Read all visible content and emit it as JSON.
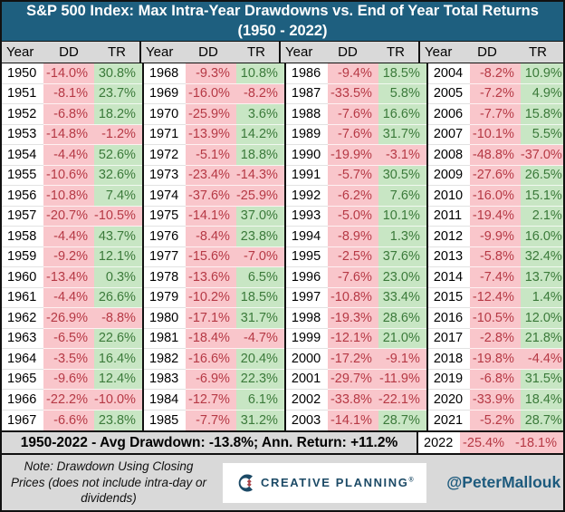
{
  "chart_data": {
    "type": "table",
    "title": "S&P 500 Index: Max Intra-Year Drawdowns vs. End of Year Total Returns (1950 - 2022)",
    "columns": [
      "Year",
      "DD",
      "TR"
    ],
    "column_descriptions": {
      "DD": "Max intra-year drawdown",
      "TR": "End of year total return"
    },
    "groups": [
      [
        [
          "1950",
          "-14.0%",
          "30.8%"
        ],
        [
          "1951",
          "-8.1%",
          "23.7%"
        ],
        [
          "1952",
          "-6.8%",
          "18.2%"
        ],
        [
          "1953",
          "-14.8%",
          "-1.2%"
        ],
        [
          "1954",
          "-4.4%",
          "52.6%"
        ],
        [
          "1955",
          "-10.6%",
          "32.6%"
        ],
        [
          "1956",
          "-10.8%",
          "7.4%"
        ],
        [
          "1957",
          "-20.7%",
          "-10.5%"
        ],
        [
          "1958",
          "-4.4%",
          "43.7%"
        ],
        [
          "1959",
          "-9.2%",
          "12.1%"
        ],
        [
          "1960",
          "-13.4%",
          "0.3%"
        ],
        [
          "1961",
          "-4.4%",
          "26.6%"
        ],
        [
          "1962",
          "-26.9%",
          "-8.8%"
        ],
        [
          "1963",
          "-6.5%",
          "22.6%"
        ],
        [
          "1964",
          "-3.5%",
          "16.4%"
        ],
        [
          "1965",
          "-9.6%",
          "12.4%"
        ],
        [
          "1966",
          "-22.2%",
          "-10.0%"
        ],
        [
          "1967",
          "-6.6%",
          "23.8%"
        ]
      ],
      [
        [
          "1968",
          "-9.3%",
          "10.8%"
        ],
        [
          "1969",
          "-16.0%",
          "-8.2%"
        ],
        [
          "1970",
          "-25.9%",
          "3.6%"
        ],
        [
          "1971",
          "-13.9%",
          "14.2%"
        ],
        [
          "1972",
          "-5.1%",
          "18.8%"
        ],
        [
          "1973",
          "-23.4%",
          "-14.3%"
        ],
        [
          "1974",
          "-37.6%",
          "-25.9%"
        ],
        [
          "1975",
          "-14.1%",
          "37.0%"
        ],
        [
          "1976",
          "-8.4%",
          "23.8%"
        ],
        [
          "1977",
          "-15.6%",
          "-7.0%"
        ],
        [
          "1978",
          "-13.6%",
          "6.5%"
        ],
        [
          "1979",
          "-10.2%",
          "18.5%"
        ],
        [
          "1980",
          "-17.1%",
          "31.7%"
        ],
        [
          "1981",
          "-18.4%",
          "-4.7%"
        ],
        [
          "1982",
          "-16.6%",
          "20.4%"
        ],
        [
          "1983",
          "-6.9%",
          "22.3%"
        ],
        [
          "1984",
          "-12.7%",
          "6.1%"
        ],
        [
          "1985",
          "-7.7%",
          "31.2%"
        ]
      ],
      [
        [
          "1986",
          "-9.4%",
          "18.5%"
        ],
        [
          "1987",
          "-33.5%",
          "5.8%"
        ],
        [
          "1988",
          "-7.6%",
          "16.6%"
        ],
        [
          "1989",
          "-7.6%",
          "31.7%"
        ],
        [
          "1990",
          "-19.9%",
          "-3.1%"
        ],
        [
          "1991",
          "-5.7%",
          "30.5%"
        ],
        [
          "1992",
          "-6.2%",
          "7.6%"
        ],
        [
          "1993",
          "-5.0%",
          "10.1%"
        ],
        [
          "1994",
          "-8.9%",
          "1.3%"
        ],
        [
          "1995",
          "-2.5%",
          "37.6%"
        ],
        [
          "1996",
          "-7.6%",
          "23.0%"
        ],
        [
          "1997",
          "-10.8%",
          "33.4%"
        ],
        [
          "1998",
          "-19.3%",
          "28.6%"
        ],
        [
          "1999",
          "-12.1%",
          "21.0%"
        ],
        [
          "2000",
          "-17.2%",
          "-9.1%"
        ],
        [
          "2001",
          "-29.7%",
          "-11.9%"
        ],
        [
          "2002",
          "-33.8%",
          "-22.1%"
        ],
        [
          "2003",
          "-14.1%",
          "28.7%"
        ]
      ],
      [
        [
          "2004",
          "-8.2%",
          "10.9%"
        ],
        [
          "2005",
          "-7.2%",
          "4.9%"
        ],
        [
          "2006",
          "-7.7%",
          "15.8%"
        ],
        [
          "2007",
          "-10.1%",
          "5.5%"
        ],
        [
          "2008",
          "-48.8%",
          "-37.0%"
        ],
        [
          "2009",
          "-27.6%",
          "26.5%"
        ],
        [
          "2010",
          "-16.0%",
          "15.1%"
        ],
        [
          "2011",
          "-19.4%",
          "2.1%"
        ],
        [
          "2012",
          "-9.9%",
          "16.0%"
        ],
        [
          "2013",
          "-5.8%",
          "32.4%"
        ],
        [
          "2014",
          "-7.4%",
          "13.7%"
        ],
        [
          "2015",
          "-12.4%",
          "1.4%"
        ],
        [
          "2016",
          "-10.5%",
          "12.0%"
        ],
        [
          "2017",
          "-2.8%",
          "21.8%"
        ],
        [
          "2018",
          "-19.8%",
          "-4.4%"
        ],
        [
          "2019",
          "-6.8%",
          "31.5%"
        ],
        [
          "2020",
          "-33.9%",
          "18.4%"
        ],
        [
          "2021",
          "-5.2%",
          "28.7%"
        ]
      ]
    ],
    "summary": "1950-2022 - Avg Drawdown: -13.8%; Ann. Return: +11.2%",
    "final_row": [
      "2022",
      "-25.4%",
      "-18.1%"
    ]
  },
  "footer": {
    "note": "Note: Drawdown Using Closing Prices (does not include intra-day or dividends)",
    "logo_text": "CREATIVE PLANNING",
    "logo_mark": "®",
    "handle": "@PeterMallouk"
  },
  "colors": {
    "title_bg": "#1e5f7f",
    "header_bg": "#d9d9d9",
    "dd_bg": "#f9c6cb",
    "tr_pos_bg": "#c8e6c4",
    "neg_text": "#b63945",
    "pos_text": "#3b7a3a",
    "logo_navy": "#1c4a66",
    "logo_diamond": "#a94449",
    "handle_color": "#1d5a7d"
  }
}
